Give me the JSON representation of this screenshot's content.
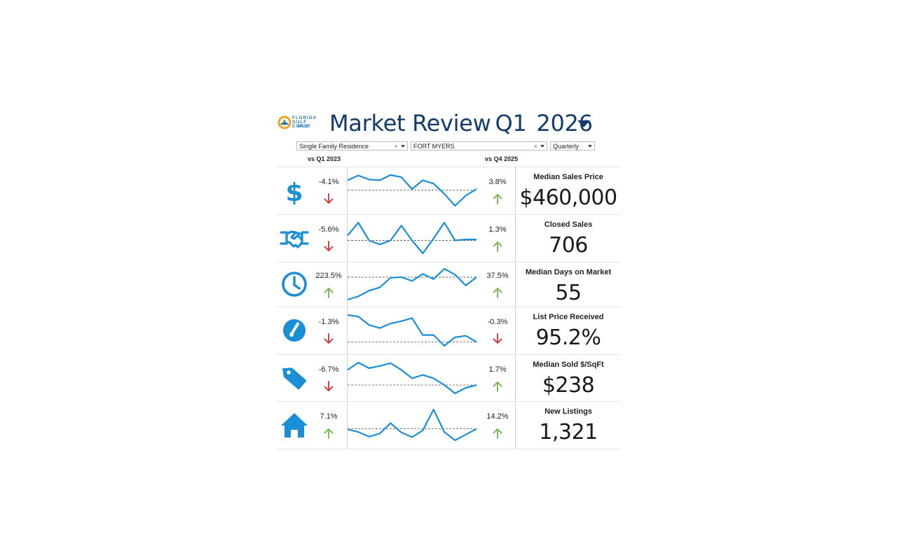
{
  "header": {
    "logo_lines": [
      "FLORIDA",
      "GULF COAST",
      "MLS"
    ],
    "title": "Market Review",
    "quarter": "Q1",
    "year": "2026"
  },
  "filters": {
    "property_type": "Single Family Residence",
    "city": "FORT MYERS",
    "period": "Quarterly"
  },
  "comparisons": {
    "left": "vs Q1 2023",
    "right": "vs Q4 2025"
  },
  "colors": {
    "accent": "#1a8fd6",
    "title": "#123d6b",
    "up": "#7fb85a",
    "down": "#c9474b"
  },
  "metrics": [
    {
      "icon": "dollar-icon",
      "yoy": "-4.1%",
      "yoy_dir": "down",
      "qoq": "3.8%",
      "qoq_dir": "up",
      "label": "Median Sales Price",
      "value": "$460,000",
      "trend": [
        0.42,
        0.62,
        0.45,
        0.42,
        0.64,
        0.55,
        0.05,
        0.42,
        0.28,
        -0.15,
        -0.65,
        -0.22,
        0.05
      ]
    },
    {
      "icon": "handshake-icon",
      "yoy": "-5.6%",
      "yoy_dir": "down",
      "qoq": "1.3%",
      "qoq_dir": "up",
      "label": "Closed Sales",
      "value": "706",
      "trend": [
        0.25,
        0.9,
        0.0,
        -0.2,
        0.0,
        0.75,
        0.0,
        -0.65,
        0.1,
        0.9,
        0.0,
        0.05,
        0.05
      ]
    },
    {
      "icon": "clock-icon",
      "yoy": "223.5%",
      "yoy_dir": "up",
      "qoq": "37.5%",
      "qoq_dir": "up",
      "label": "Median Days on Market",
      "value": "55",
      "trend": [
        -1.75,
        -1.5,
        -1.05,
        -0.8,
        -0.05,
        0.0,
        -0.3,
        0.25,
        -0.15,
        0.65,
        0.2,
        -0.65,
        0.0
      ]
    },
    {
      "icon": "gauge-icon",
      "yoy": "-1.3%",
      "yoy_dir": "down",
      "qoq": "-0.3%",
      "qoq_dir": "down",
      "label": "List Price Received",
      "value": "95.2%",
      "trend": [
        1.75,
        1.65,
        1.1,
        0.9,
        1.2,
        1.35,
        1.55,
        0.45,
        0.45,
        -0.25,
        0.3,
        0.4,
        0.0
      ]
    },
    {
      "icon": "tag-icon",
      "yoy": "-6.7%",
      "yoy_dir": "down",
      "qoq": "1.7%",
      "qoq_dir": "up",
      "label": "Median Sold $/SqFt",
      "value": "$238",
      "trend": [
        1.35,
        2.0,
        1.5,
        1.7,
        1.95,
        1.35,
        0.6,
        0.9,
        0.6,
        0.0,
        -0.75,
        -0.25,
        0.0
      ]
    },
    {
      "icon": "house-icon",
      "yoy": "7.1%",
      "yoy_dir": "up",
      "qoq": "14.2%",
      "qoq_dir": "up",
      "label": "New Listings",
      "value": "1,321",
      "trend": [
        -0.05,
        -0.3,
        -0.75,
        -0.45,
        0.55,
        -0.35,
        -0.8,
        -0.15,
        1.85,
        -0.3,
        -1.1,
        -0.55,
        0.0
      ]
    }
  ]
}
